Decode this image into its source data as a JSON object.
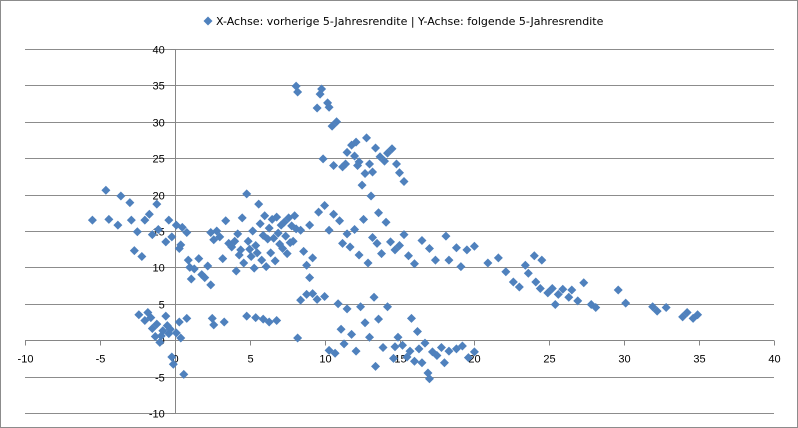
{
  "chart_data": {
    "type": "scatter",
    "legend": {
      "label": "X-Achse: vorherige 5-Jahresrendite | Y-Achse: folgende 5-Jahresrendite",
      "position": "top"
    },
    "series": [
      {
        "name": "X-Achse: vorherige 5-Jahresrendite | Y-Achse: folgende 5-Jahresrendite",
        "marker": "diamond",
        "points": [
          [
            -5.5,
            16.5
          ],
          [
            -4.6,
            20.6
          ],
          [
            -4.4,
            16.6
          ],
          [
            -3.8,
            15.8
          ],
          [
            -3.6,
            19.8
          ],
          [
            -3.0,
            18.9
          ],
          [
            -2.9,
            16.5
          ],
          [
            -2.7,
            12.3
          ],
          [
            -2.5,
            14.9
          ],
          [
            -2.2,
            11.5
          ],
          [
            -2.0,
            16.5
          ],
          [
            -1.7,
            17.3
          ],
          [
            -1.5,
            14.5
          ],
          [
            -1.2,
            18.7
          ],
          [
            -1.1,
            15.2
          ],
          [
            -0.6,
            13.5
          ],
          [
            -0.4,
            16.5
          ],
          [
            -0.2,
            14.2
          ],
          [
            0.1,
            15.8
          ],
          [
            0.3,
            12.6
          ],
          [
            0.4,
            13.1
          ],
          [
            0.5,
            15.5
          ],
          [
            0.8,
            14.8
          ],
          [
            0.9,
            11.0
          ],
          [
            1.0,
            10.0
          ],
          [
            1.1,
            8.4
          ],
          [
            1.3,
            9.8
          ],
          [
            1.6,
            11.2
          ],
          [
            1.8,
            9.0
          ],
          [
            2.0,
            8.6
          ],
          [
            2.2,
            10.2
          ],
          [
            2.4,
            7.6
          ],
          [
            -2.4,
            3.5
          ],
          [
            -2.0,
            2.7
          ],
          [
            -1.8,
            3.8
          ],
          [
            -1.6,
            3.1
          ],
          [
            -1.5,
            1.6
          ],
          [
            -1.3,
            0.5
          ],
          [
            -1.2,
            2.2
          ],
          [
            -1.0,
            -0.3
          ],
          [
            -0.9,
            0.6
          ],
          [
            -0.8,
            1.3
          ],
          [
            -0.6,
            3.3
          ],
          [
            -0.5,
            2.0
          ],
          [
            -0.4,
            0.9
          ],
          [
            -0.3,
            1.5
          ],
          [
            -0.2,
            -2.3
          ],
          [
            -0.1,
            -3.3
          ],
          [
            0.1,
            1.0
          ],
          [
            0.4,
            0.3
          ],
          [
            0.3,
            2.5
          ],
          [
            0.6,
            -4.7
          ],
          [
            0.8,
            3.0
          ],
          [
            2.4,
            14.8
          ],
          [
            2.6,
            13.8
          ],
          [
            2.8,
            15.0
          ],
          [
            3.0,
            14.2
          ],
          [
            3.2,
            11.2
          ],
          [
            3.4,
            16.4
          ],
          [
            3.6,
            13.3
          ],
          [
            3.8,
            12.8
          ],
          [
            4.0,
            13.6
          ],
          [
            4.1,
            9.5
          ],
          [
            4.2,
            14.6
          ],
          [
            4.3,
            11.7
          ],
          [
            4.4,
            12.4
          ],
          [
            4.5,
            16.8
          ],
          [
            4.6,
            10.6
          ],
          [
            4.8,
            20.1
          ],
          [
            4.9,
            13.6
          ],
          [
            5.0,
            12.5
          ],
          [
            5.1,
            11.5
          ],
          [
            5.2,
            15.0
          ],
          [
            5.3,
            9.9
          ],
          [
            5.4,
            13.0
          ],
          [
            5.5,
            12.0
          ],
          [
            5.6,
            18.7
          ],
          [
            5.7,
            16.0
          ],
          [
            5.8,
            11.0
          ],
          [
            5.9,
            14.4
          ],
          [
            6.0,
            17.1
          ],
          [
            6.1,
            10.1
          ],
          [
            6.2,
            13.9
          ],
          [
            6.3,
            15.4
          ],
          [
            6.4,
            12.0
          ],
          [
            6.5,
            16.6
          ],
          [
            6.6,
            14.0
          ],
          [
            6.7,
            10.9
          ],
          [
            6.8,
            16.9
          ],
          [
            6.9,
            14.7
          ],
          [
            7.0,
            13.2
          ],
          [
            7.1,
            15.8
          ],
          [
            7.2,
            12.6
          ],
          [
            7.3,
            16.2
          ],
          [
            7.4,
            14.3
          ],
          [
            7.5,
            11.9
          ],
          [
            7.6,
            16.8
          ],
          [
            7.7,
            13.4
          ],
          [
            7.8,
            15.7
          ],
          [
            7.9,
            13.6
          ],
          [
            8.0,
            17.1
          ],
          [
            8.1,
            15.3
          ],
          [
            8.4,
            15.1
          ],
          [
            8.6,
            12.2
          ],
          [
            8.8,
            10.3
          ],
          [
            9.0,
            8.6
          ],
          [
            9.2,
            11.3
          ],
          [
            2.5,
            3.0
          ],
          [
            2.6,
            2.1
          ],
          [
            3.3,
            2.5
          ],
          [
            4.8,
            3.3
          ],
          [
            5.4,
            3.1
          ],
          [
            5.9,
            2.9
          ],
          [
            6.3,
            2.5
          ],
          [
            6.8,
            2.7
          ],
          [
            8.1,
            34.9
          ],
          [
            8.2,
            34.1
          ],
          [
            9.8,
            34.5
          ],
          [
            9.7,
            33.8
          ],
          [
            9.5,
            31.9
          ],
          [
            10.2,
            32.6
          ],
          [
            10.3,
            32.0
          ],
          [
            10.5,
            29.4
          ],
          [
            10.8,
            30.0
          ],
          [
            9.9,
            24.9
          ],
          [
            10.6,
            24.0
          ],
          [
            11.2,
            23.8
          ],
          [
            11.5,
            25.8
          ],
          [
            11.8,
            26.8
          ],
          [
            12.1,
            27.2
          ],
          [
            12.3,
            24.5
          ],
          [
            12.5,
            21.3
          ],
          [
            12.7,
            22.9
          ],
          [
            13.0,
            24.2
          ],
          [
            13.2,
            23.1
          ],
          [
            13.4,
            26.4
          ],
          [
            13.7,
            25.2
          ],
          [
            14.0,
            24.6
          ],
          [
            14.2,
            25.7
          ],
          [
            14.5,
            26.3
          ],
          [
            14.8,
            24.2
          ],
          [
            15.0,
            23.0
          ],
          [
            15.3,
            21.8
          ],
          [
            11.4,
            24.2
          ],
          [
            12.0,
            25.3
          ],
          [
            12.8,
            27.8
          ],
          [
            13.1,
            19.8
          ],
          [
            13.6,
            17.5
          ],
          [
            12.2,
            24.0
          ],
          [
            9.0,
            15.8
          ],
          [
            9.6,
            17.6
          ],
          [
            10.0,
            18.5
          ],
          [
            10.3,
            15.1
          ],
          [
            10.6,
            17.3
          ],
          [
            11.0,
            16.4
          ],
          [
            11.2,
            13.3
          ],
          [
            11.5,
            14.6
          ],
          [
            11.7,
            12.8
          ],
          [
            12.0,
            15.2
          ],
          [
            12.3,
            11.7
          ],
          [
            12.6,
            16.6
          ],
          [
            12.9,
            10.6
          ],
          [
            13.2,
            14.1
          ],
          [
            13.5,
            13.3
          ],
          [
            13.8,
            11.9
          ],
          [
            14.1,
            16.2
          ],
          [
            14.4,
            13.5
          ],
          [
            14.7,
            12.4
          ],
          [
            15.0,
            13.0
          ],
          [
            15.3,
            14.5
          ],
          [
            15.6,
            11.6
          ],
          [
            16.0,
            10.5
          ],
          [
            16.5,
            13.7
          ],
          [
            17.0,
            12.6
          ],
          [
            17.4,
            11.0
          ],
          [
            18.1,
            14.3
          ],
          [
            18.3,
            11.0
          ],
          [
            18.8,
            12.7
          ],
          [
            19.1,
            10.1
          ],
          [
            19.5,
            12.4
          ],
          [
            20.0,
            12.9
          ],
          [
            20.9,
            10.6
          ],
          [
            21.6,
            11.3
          ],
          [
            22.1,
            9.4
          ],
          [
            22.6,
            8.0
          ],
          [
            23.0,
            7.3
          ],
          [
            23.4,
            10.3
          ],
          [
            23.6,
            9.2
          ],
          [
            24.0,
            11.6
          ],
          [
            24.1,
            8.0
          ],
          [
            24.4,
            7.1
          ],
          [
            24.5,
            11.0
          ],
          [
            24.9,
            6.5
          ],
          [
            25.2,
            7.1
          ],
          [
            25.4,
            4.9
          ],
          [
            25.6,
            6.3
          ],
          [
            25.9,
            7.0
          ],
          [
            26.3,
            5.9
          ],
          [
            26.5,
            6.9
          ],
          [
            26.9,
            5.4
          ],
          [
            27.3,
            7.9
          ],
          [
            27.8,
            4.9
          ],
          [
            28.1,
            4.5
          ],
          [
            29.6,
            6.9
          ],
          [
            30.1,
            5.1
          ],
          [
            31.9,
            4.6
          ],
          [
            32.2,
            4.0
          ],
          [
            32.8,
            4.5
          ],
          [
            33.9,
            3.2
          ],
          [
            34.2,
            3.8
          ],
          [
            34.6,
            3.0
          ],
          [
            34.9,
            3.5
          ],
          [
            8.2,
            0.3
          ],
          [
            8.4,
            5.5
          ],
          [
            8.8,
            6.3
          ],
          [
            9.2,
            6.4
          ],
          [
            9.5,
            5.6
          ],
          [
            10.0,
            6.0
          ],
          [
            10.3,
            -1.4
          ],
          [
            10.7,
            -1.8
          ],
          [
            10.9,
            5.0
          ],
          [
            11.1,
            1.5
          ],
          [
            11.3,
            -0.5
          ],
          [
            11.5,
            4.3
          ],
          [
            11.8,
            0.8
          ],
          [
            12.1,
            -1.5
          ],
          [
            12.4,
            4.6
          ],
          [
            12.7,
            2.4
          ],
          [
            13.0,
            0.4
          ],
          [
            13.3,
            5.9
          ],
          [
            13.6,
            2.9
          ],
          [
            13.9,
            -1.0
          ],
          [
            14.2,
            4.6
          ],
          [
            14.6,
            -2.5
          ],
          [
            14.9,
            0.4
          ],
          [
            15.2,
            -0.7
          ],
          [
            15.5,
            -2.3
          ],
          [
            15.8,
            3.0
          ],
          [
            16.0,
            -2.9
          ],
          [
            16.3,
            -1.2
          ],
          [
            16.5,
            -3.1
          ],
          [
            16.7,
            -0.4
          ],
          [
            17.0,
            -5.3
          ],
          [
            17.2,
            -1.6
          ],
          [
            17.5,
            -2.1
          ],
          [
            17.8,
            -1.0
          ],
          [
            18.0,
            -3.1
          ],
          [
            18.3,
            -1.5
          ],
          [
            18.8,
            -1.2
          ],
          [
            19.2,
            -0.8
          ],
          [
            19.6,
            -2.4
          ],
          [
            20.0,
            -1.6
          ],
          [
            13.4,
            -3.6
          ],
          [
            14.7,
            -0.9
          ],
          [
            15.7,
            -1.5
          ],
          [
            16.9,
            -4.5
          ],
          [
            16.2,
            1.2
          ]
        ]
      }
    ],
    "xlim": [
      -10,
      40
    ],
    "ylim": [
      -10,
      40
    ],
    "x_ticks": [
      "-10",
      "-5",
      "0",
      "5",
      "10",
      "15",
      "20",
      "25",
      "30",
      "35",
      "40"
    ],
    "y_ticks": [
      "40",
      "35",
      "30",
      "25",
      "20",
      "15",
      "10",
      "5",
      "0",
      "-5",
      "-10"
    ],
    "grid": true,
    "colors": {
      "marker": "#4f81bd",
      "grid": "#8c8c8c",
      "axis": "#868686",
      "border": "#8c8c8c"
    }
  }
}
